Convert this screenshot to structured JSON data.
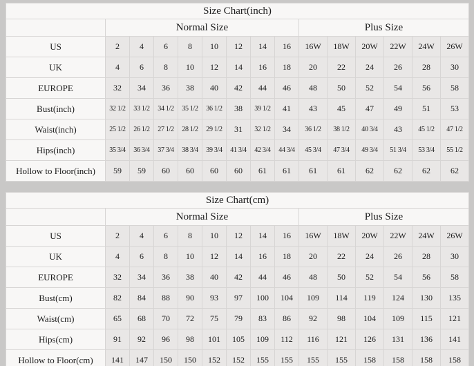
{
  "colors": {
    "page_background": "#c9c8c7",
    "light_cell": "#f8f7f6",
    "data_cell": "#e9e7e6",
    "grid_line": "#d7d5d4",
    "text": "#1c1c1c"
  },
  "chart_data": [
    {
      "type": "table",
      "title": "Size Chart(inch)",
      "column_groups": [
        {
          "label": "Normal Size",
          "span": 8
        },
        {
          "label": "Plus Size",
          "span": 6
        }
      ],
      "rows": [
        {
          "label": "US",
          "values": [
            "2",
            "4",
            "6",
            "8",
            "10",
            "12",
            "14",
            "16",
            "16W",
            "18W",
            "20W",
            "22W",
            "24W",
            "26W"
          ]
        },
        {
          "label": "UK",
          "values": [
            "4",
            "6",
            "8",
            "10",
            "12",
            "14",
            "16",
            "18",
            "20",
            "22",
            "24",
            "26",
            "28",
            "30"
          ]
        },
        {
          "label": "EUROPE",
          "values": [
            "32",
            "34",
            "36",
            "38",
            "40",
            "42",
            "44",
            "46",
            "48",
            "50",
            "52",
            "54",
            "56",
            "58"
          ]
        },
        {
          "label": "Bust(inch)",
          "values": [
            "32 1/2",
            "33 1/2",
            "34 1/2",
            "35 1/2",
            "36 1/2",
            "38",
            "39 1/2",
            "41",
            "43",
            "45",
            "47",
            "49",
            "51",
            "53"
          ]
        },
        {
          "label": "Waist(inch)",
          "values": [
            "25 1/2",
            "26 1/2",
            "27 1/2",
            "28 1/2",
            "29 1/2",
            "31",
            "32 1/2",
            "34",
            "36 1/2",
            "38 1/2",
            "40 3/4",
            "43",
            "45 1/2",
            "47 1/2"
          ]
        },
        {
          "label": "Hips(inch)",
          "values": [
            "35 3/4",
            "36 3/4",
            "37 3/4",
            "38 3/4",
            "39 3/4",
            "41 3/4",
            "42 3/4",
            "44 3/4",
            "45 3/4",
            "47 3/4",
            "49 3/4",
            "51 3/4",
            "53 3/4",
            "55 1/2"
          ]
        },
        {
          "label": "Hollow to Floor(inch)",
          "values": [
            "59",
            "59",
            "60",
            "60",
            "60",
            "60",
            "61",
            "61",
            "61",
            "61",
            "62",
            "62",
            "62",
            "62"
          ]
        }
      ]
    },
    {
      "type": "table",
      "title": "Size Chart(cm)",
      "column_groups": [
        {
          "label": "Normal Size",
          "span": 8
        },
        {
          "label": "Plus Size",
          "span": 6
        }
      ],
      "rows": [
        {
          "label": "US",
          "values": [
            "2",
            "4",
            "6",
            "8",
            "10",
            "12",
            "14",
            "16",
            "16W",
            "18W",
            "20W",
            "22W",
            "24W",
            "26W"
          ]
        },
        {
          "label": "UK",
          "values": [
            "4",
            "6",
            "8",
            "10",
            "12",
            "14",
            "16",
            "18",
            "20",
            "22",
            "24",
            "26",
            "28",
            "30"
          ]
        },
        {
          "label": "EUROPE",
          "values": [
            "32",
            "34",
            "36",
            "38",
            "40",
            "42",
            "44",
            "46",
            "48",
            "50",
            "52",
            "54",
            "56",
            "58"
          ]
        },
        {
          "label": "Bust(cm)",
          "values": [
            "82",
            "84",
            "88",
            "90",
            "93",
            "97",
            "100",
            "104",
            "109",
            "114",
            "119",
            "124",
            "130",
            "135"
          ]
        },
        {
          "label": "Waist(cm)",
          "values": [
            "65",
            "68",
            "70",
            "72",
            "75",
            "79",
            "83",
            "86",
            "92",
            "98",
            "104",
            "109",
            "115",
            "121"
          ]
        },
        {
          "label": "Hips(cm)",
          "values": [
            "91",
            "92",
            "96",
            "98",
            "101",
            "105",
            "109",
            "112",
            "116",
            "121",
            "126",
            "131",
            "136",
            "141"
          ]
        },
        {
          "label": "Hollow to Floor(cm)",
          "values": [
            "141",
            "147",
            "150",
            "150",
            "152",
            "152",
            "155",
            "155",
            "155",
            "155",
            "158",
            "158",
            "158",
            "158"
          ]
        }
      ]
    }
  ]
}
